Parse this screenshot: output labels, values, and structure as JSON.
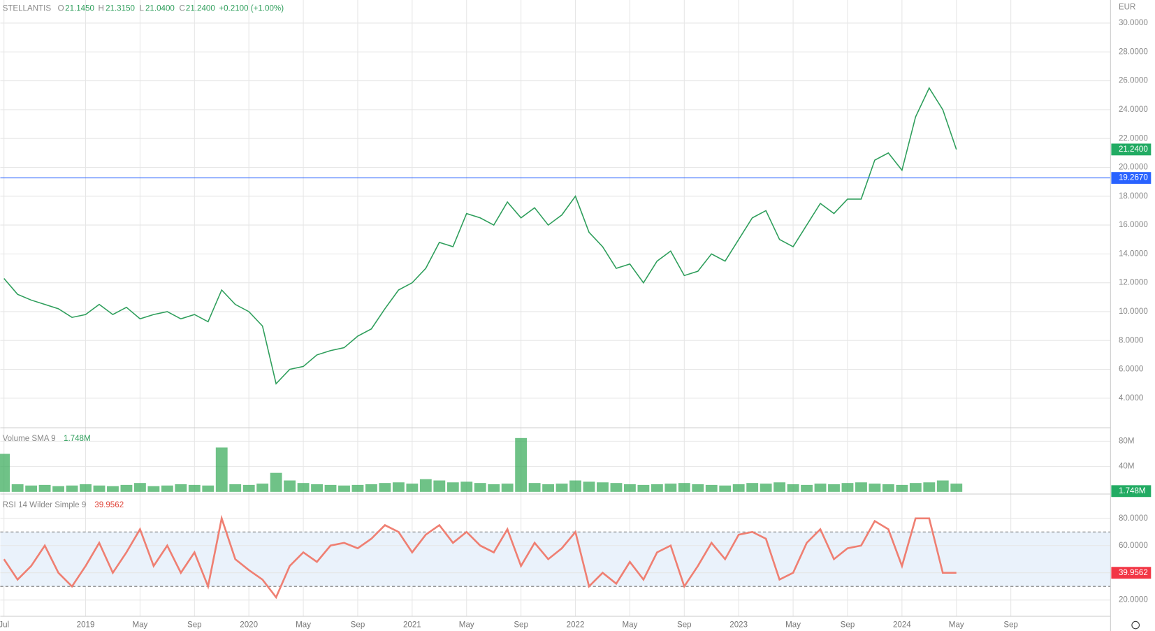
{
  "header": {
    "symbol": "STELLANTIS",
    "open_key": "O",
    "open": "21.1450",
    "high_key": "H",
    "high": "21.3150",
    "low_key": "L",
    "low": "21.0400",
    "close_key": "C",
    "close": "21.2400",
    "change": "+0.2100 (+1.00%)",
    "currency": "EUR"
  },
  "chart_data": [
    {
      "type": "line",
      "name": "price",
      "x": [
        "2018-07",
        "2018-08",
        "2018-09",
        "2018-10",
        "2018-11",
        "2018-12",
        "2019-01",
        "2019-02",
        "2019-03",
        "2019-04",
        "2019-05",
        "2019-06",
        "2019-07",
        "2019-08",
        "2019-09",
        "2019-10",
        "2019-11",
        "2019-12",
        "2020-01",
        "2020-02",
        "2020-03",
        "2020-04",
        "2020-05",
        "2020-06",
        "2020-07",
        "2020-08",
        "2020-09",
        "2020-10",
        "2020-11",
        "2020-12",
        "2021-01",
        "2021-02",
        "2021-03",
        "2021-04",
        "2021-05",
        "2021-06",
        "2021-07",
        "2021-08",
        "2021-09",
        "2021-10",
        "2021-11",
        "2021-12",
        "2022-01",
        "2022-02",
        "2022-03",
        "2022-04",
        "2022-05",
        "2022-06",
        "2022-07",
        "2022-08",
        "2022-09",
        "2022-10",
        "2022-11",
        "2022-12",
        "2023-01",
        "2023-02",
        "2023-03",
        "2023-04",
        "2023-05",
        "2023-06",
        "2023-07",
        "2023-08",
        "2023-09",
        "2023-10",
        "2023-11",
        "2023-12",
        "2024-01",
        "2024-02",
        "2024-03",
        "2024-04",
        "2024-05"
      ],
      "series": [
        {
          "name": "STELLANTIS",
          "color": "#2e9e5b",
          "values": [
            12.3,
            11.2,
            10.8,
            10.5,
            10.2,
            9.6,
            9.8,
            10.5,
            9.8,
            10.3,
            9.5,
            9.8,
            10.0,
            9.5,
            9.8,
            9.3,
            11.5,
            10.5,
            10.0,
            9.0,
            5.0,
            6.0,
            6.2,
            7.0,
            7.3,
            7.5,
            8.3,
            8.8,
            10.2,
            11.5,
            12.0,
            13.0,
            14.8,
            14.5,
            16.8,
            16.5,
            16.0,
            17.6,
            16.5,
            17.2,
            16.0,
            16.7,
            18.0,
            15.5,
            14.5,
            13.0,
            13.3,
            12.0,
            13.5,
            14.2,
            12.5,
            12.8,
            14.0,
            13.5,
            15.0,
            16.5,
            17.0,
            15.0,
            14.5,
            16.0,
            17.5,
            16.8,
            17.8,
            17.8,
            20.5,
            21.0,
            19.8,
            23.5,
            25.5,
            24.0,
            21.24
          ]
        }
      ],
      "xlim": [
        "2018-07",
        "2024-12"
      ],
      "xticks": [
        {
          "value": "2018-07",
          "label": "Jul"
        },
        {
          "value": "2019-01",
          "label": "2019"
        },
        {
          "value": "2019-05",
          "label": "May"
        },
        {
          "value": "2019-09",
          "label": "Sep"
        },
        {
          "value": "2020-01",
          "label": "2020"
        },
        {
          "value": "2020-05",
          "label": "May"
        },
        {
          "value": "2020-09",
          "label": "Sep"
        },
        {
          "value": "2021-01",
          "label": "2021"
        },
        {
          "value": "2021-05",
          "label": "May"
        },
        {
          "value": "2021-09",
          "label": "Sep"
        },
        {
          "value": "2022-01",
          "label": "2022"
        },
        {
          "value": "2022-05",
          "label": "May"
        },
        {
          "value": "2022-09",
          "label": "Sep"
        },
        {
          "value": "2023-01",
          "label": "2023"
        },
        {
          "value": "2023-05",
          "label": "May"
        },
        {
          "value": "2023-09",
          "label": "Sep"
        },
        {
          "value": "2024-01",
          "label": "2024"
        },
        {
          "value": "2024-05",
          "label": "May"
        },
        {
          "value": "2024-09",
          "label": "Sep"
        }
      ],
      "ylim": [
        2,
        31.6
      ],
      "yticks": [
        {
          "value": 4,
          "label": "4.0000"
        },
        {
          "value": 6,
          "label": "6.0000"
        },
        {
          "value": 8,
          "label": "8.0000"
        },
        {
          "value": 10,
          "label": "10.0000"
        },
        {
          "value": 12,
          "label": "12.0000"
        },
        {
          "value": 14,
          "label": "14.0000"
        },
        {
          "value": 16,
          "label": "16.0000"
        },
        {
          "value": 18,
          "label": "18.0000"
        },
        {
          "value": 20,
          "label": "20.0000"
        },
        {
          "value": 22,
          "label": "22.0000"
        },
        {
          "value": 24,
          "label": "24.0000"
        },
        {
          "value": 26,
          "label": "26.0000"
        },
        {
          "value": 28,
          "label": "28.0000"
        },
        {
          "value": 30,
          "label": "30.0000"
        }
      ],
      "hline": {
        "value": 19.267,
        "label": "19.2670",
        "color": "#2962ff"
      },
      "grid": true
    },
    {
      "type": "bar",
      "name": "volume",
      "title": "Volume SMA 9",
      "last_label": "1.748M",
      "series": [
        {
          "name": "Volume",
          "color": "#3fae5f",
          "values": [
            60,
            12,
            10,
            11,
            9,
            10,
            12,
            10,
            9,
            11,
            14,
            9,
            10,
            12,
            11,
            10,
            70,
            12,
            11,
            13,
            30,
            18,
            14,
            12,
            11,
            10,
            11,
            12,
            14,
            15,
            13,
            20,
            18,
            15,
            16,
            14,
            12,
            13,
            85,
            14,
            12,
            13,
            18,
            16,
            15,
            14,
            12,
            11,
            12,
            13,
            14,
            12,
            11,
            10,
            12,
            14,
            13,
            15,
            12,
            11,
            13,
            12,
            14,
            15,
            13,
            12,
            11,
            14,
            15,
            18,
            13
          ]
        }
      ],
      "ylim": [
        0,
        100000000
      ],
      "unit": 1000000,
      "yticks": [
        {
          "value": 40000000,
          "label": "40M"
        },
        {
          "value": 80000000,
          "label": "80M"
        }
      ],
      "grid": true
    },
    {
      "type": "line",
      "name": "rsi",
      "title": "RSI 14 Wilder Simple 9",
      "last_label": "39.9562",
      "series": [
        {
          "name": "RSI",
          "color": "#ef7f72",
          "values": [
            50,
            35,
            45,
            60,
            40,
            30,
            45,
            62,
            40,
            55,
            72,
            45,
            60,
            40,
            55,
            30,
            80,
            50,
            42,
            35,
            22,
            45,
            55,
            48,
            60,
            62,
            58,
            65,
            75,
            70,
            55,
            68,
            75,
            62,
            70,
            60,
            55,
            72,
            45,
            62,
            50,
            58,
            70,
            30,
            40,
            32,
            48,
            35,
            55,
            60,
            30,
            45,
            62,
            50,
            68,
            70,
            65,
            35,
            40,
            62,
            72,
            50,
            58,
            60,
            78,
            72,
            45,
            80,
            80,
            40,
            40
          ]
        }
      ],
      "ylim": [
        8.6,
        97.3
      ],
      "yticks": [
        {
          "value": 20,
          "label": "20.0000"
        },
        {
          "value": 40,
          "label": "40.0000"
        },
        {
          "value": 60,
          "label": "60.0000"
        },
        {
          "value": 80,
          "label": "80.0000"
        }
      ],
      "bands": [
        30,
        70
      ],
      "grid": true
    }
  ]
}
